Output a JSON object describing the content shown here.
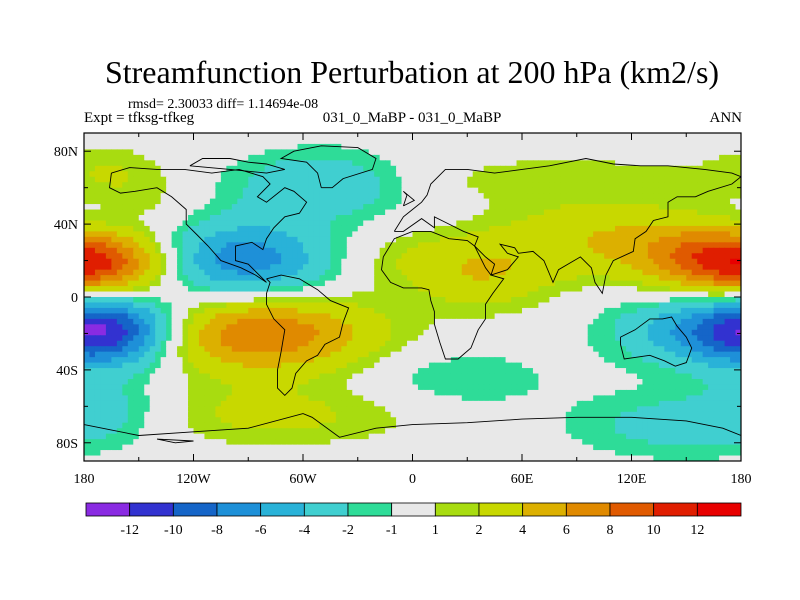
{
  "chart_data": {
    "type": "heatmap",
    "title": "Streamfunction Perturbation at 200 hPa (km2/s)",
    "stats_line": "rmsd= 2.30033 diff= 1.14694e-08",
    "left_label": "Expt = tfksg-tfkeg",
    "center_label": "031_0_MaBP - 031_0_MaBP",
    "right_label": "ANN",
    "x_axis": {
      "range": [
        -180,
        180
      ],
      "ticks": [
        -180,
        -120,
        -60,
        0,
        60,
        120,
        180
      ],
      "tick_labels": [
        "180",
        "120W",
        "60W",
        "0",
        "60E",
        "120E",
        "180"
      ]
    },
    "y_axis": {
      "range": [
        -90,
        90
      ],
      "ticks": [
        80,
        40,
        0,
        -40,
        -80
      ],
      "tick_labels": [
        "80N",
        "40N",
        "0",
        "40S",
        "80S"
      ]
    },
    "colorbar": {
      "labels": [
        "-12",
        "-10",
        "-8",
        "-6",
        "-4",
        "-2",
        "-1",
        "1",
        "2",
        "4",
        "6",
        "8",
        "10",
        "12"
      ],
      "colors": [
        "#8a2be2",
        "#3232d0",
        "#1565c8",
        "#1e90d8",
        "#29b2d8",
        "#40cfd0",
        "#2edc98",
        "#e8e8e8",
        "#a8dc10",
        "#c8d800",
        "#dcb000",
        "#e08a00",
        "#e05a00",
        "#e01e00",
        "#e80000"
      ]
    },
    "anomalies": [
      {
        "lon": -165,
        "lat": 18,
        "amp": 6,
        "rlon": 30,
        "rlat": 14
      },
      {
        "lon": 175,
        "lat": 18,
        "amp": 6,
        "rlon": 30,
        "rlat": 14
      },
      {
        "lon": -95,
        "lat": 20,
        "amp": -8,
        "rlon": 38,
        "rlat": 15
      },
      {
        "lon": -85,
        "lat": -20,
        "amp": 8,
        "rlon": 45,
        "rlat": 15
      },
      {
        "lon": -165,
        "lat": -18,
        "amp": -8,
        "rlon": 25,
        "rlat": 14
      },
      {
        "lon": 170,
        "lat": -18,
        "amp": -7,
        "rlon": 38,
        "rlat": 14
      },
      {
        "lon": -50,
        "lat": 62,
        "amp": -4,
        "rlon": 35,
        "rlat": 13
      },
      {
        "lon": 30,
        "lat": 20,
        "amp": 3,
        "rlon": 55,
        "rlat": 12
      },
      {
        "lon": 100,
        "lat": 38,
        "amp": 2.5,
        "rlon": 40,
        "rlat": 12
      },
      {
        "lon": 150,
        "lat": 25,
        "amp": 3,
        "rlon": 35,
        "rlat": 12
      },
      {
        "lon": -170,
        "lat": 40,
        "amp": -2,
        "rlon": 22,
        "rlat": 10
      },
      {
        "lon": 25,
        "lat": -45,
        "amp": -2,
        "rlon": 35,
        "rlat": 12
      },
      {
        "lon": 150,
        "lat": -70,
        "amp": -3,
        "rlon": 45,
        "rlat": 13
      },
      {
        "lon": -80,
        "lat": -65,
        "amp": 2.5,
        "rlon": 60,
        "rlat": 12
      },
      {
        "lon": 80,
        "lat": 65,
        "amp": 1.5,
        "rlon": 80,
        "rlat": 10
      },
      {
        "lon": -165,
        "lat": 70,
        "amp": 1.5,
        "rlon": 22,
        "rlat": 10
      },
      {
        "lon": -165,
        "lat": -60,
        "amp": -2,
        "rlon": 25,
        "rlat": 12
      },
      {
        "lon": -150,
        "lat": 50,
        "amp": 1.5,
        "rlon": 20,
        "rlat": 10
      },
      {
        "lon": 40,
        "lat": 5,
        "amp": 2,
        "rlon": 25,
        "rlat": 12
      }
    ],
    "coastlines": [
      [
        [
          -165,
          68
        ],
        [
          -155,
          71
        ],
        [
          -140,
          70
        ],
        [
          -125,
          70
        ],
        [
          -110,
          68
        ],
        [
          -95,
          70
        ],
        [
          -82,
          66
        ],
        [
          -78,
          62
        ],
        [
          -85,
          55
        ],
        [
          -80,
          52
        ],
        [
          -70,
          60
        ],
        [
          -65,
          58
        ],
        [
          -58,
          52
        ],
        [
          -62,
          46
        ],
        [
          -70,
          44
        ],
        [
          -76,
          38
        ],
        [
          -80,
          32
        ],
        [
          -82,
          26
        ],
        [
          -88,
          30
        ],
        [
          -97,
          28
        ],
        [
          -97,
          20
        ],
        [
          -90,
          18
        ],
        [
          -84,
          12
        ],
        [
          -80,
          8
        ],
        [
          -86,
          12
        ],
        [
          -94,
          16
        ],
        [
          -105,
          20
        ],
        [
          -112,
          28
        ],
        [
          -118,
          34
        ],
        [
          -124,
          40
        ],
        [
          -124,
          48
        ],
        [
          -132,
          55
        ],
        [
          -140,
          60
        ],
        [
          -152,
          58
        ],
        [
          -160,
          57
        ],
        [
          -166,
          60
        ],
        [
          -165,
          68
        ]
      ],
      [
        [
          -80,
          10
        ],
        [
          -72,
          12
        ],
        [
          -62,
          10
        ],
        [
          -52,
          4
        ],
        [
          -45,
          -2
        ],
        [
          -35,
          -6
        ],
        [
          -38,
          -14
        ],
        [
          -40,
          -22
        ],
        [
          -48,
          -26
        ],
        [
          -52,
          -32
        ],
        [
          -58,
          -35
        ],
        [
          -64,
          -42
        ],
        [
          -66,
          -50
        ],
        [
          -70,
          -54
        ],
        [
          -74,
          -50
        ],
        [
          -74,
          -40
        ],
        [
          -72,
          -30
        ],
        [
          -70,
          -18
        ],
        [
          -76,
          -12
        ],
        [
          -80,
          -4
        ],
        [
          -80,
          2
        ],
        [
          -78,
          8
        ],
        [
          -80,
          10
        ]
      ],
      [
        [
          -10,
          36
        ],
        [
          -5,
          44
        ],
        [
          0,
          48
        ],
        [
          5,
          52
        ],
        [
          8,
          56
        ],
        [
          10,
          62
        ],
        [
          18,
          70
        ],
        [
          30,
          70
        ],
        [
          45,
          68
        ],
        [
          60,
          70
        ],
        [
          75,
          72
        ],
        [
          95,
          76
        ],
        [
          110,
          73
        ],
        [
          125,
          72
        ],
        [
          140,
          72
        ],
        [
          160,
          70
        ],
        [
          175,
          68
        ],
        [
          180,
          66
        ],
        [
          175,
          62
        ],
        [
          162,
          58
        ],
        [
          155,
          55
        ],
        [
          145,
          55
        ],
        [
          140,
          52
        ],
        [
          140,
          44
        ],
        [
          132,
          42
        ],
        [
          128,
          36
        ],
        [
          122,
          32
        ],
        [
          121,
          25
        ],
        [
          110,
          20
        ],
        [
          106,
          12
        ],
        [
          104,
          2
        ],
        [
          100,
          8
        ],
        [
          98,
          16
        ],
        [
          92,
          22
        ],
        [
          80,
          15
        ],
        [
          77,
          8
        ],
        [
          72,
          20
        ],
        [
          66,
          25
        ],
        [
          58,
          24
        ],
        [
          56,
          27
        ],
        [
          48,
          29
        ],
        [
          52,
          24
        ],
        [
          58,
          22
        ],
        [
          52,
          15
        ],
        [
          43,
          12
        ],
        [
          45,
          18
        ],
        [
          40,
          22
        ],
        [
          34,
          28
        ],
        [
          36,
          33
        ],
        [
          28,
          36
        ],
        [
          20,
          40
        ],
        [
          12,
          44
        ],
        [
          12,
          38
        ],
        [
          5,
          43
        ],
        [
          -5,
          36
        ],
        [
          -10,
          36
        ]
      ],
      [
        [
          -16,
          22
        ],
        [
          -17,
          15
        ],
        [
          -12,
          8
        ],
        [
          -5,
          5
        ],
        [
          5,
          5
        ],
        [
          9,
          4
        ],
        [
          10,
          -2
        ],
        [
          12,
          -8
        ],
        [
          12,
          -15
        ],
        [
          15,
          -25
        ],
        [
          18,
          -34
        ],
        [
          25,
          -34
        ],
        [
          32,
          -28
        ],
        [
          36,
          -18
        ],
        [
          40,
          -12
        ],
        [
          40,
          -4
        ],
        [
          44,
          2
        ],
        [
          50,
          10
        ],
        [
          43,
          12
        ],
        [
          40,
          16
        ],
        [
          34,
          28
        ],
        [
          30,
          31
        ],
        [
          20,
          32
        ],
        [
          10,
          36
        ],
        [
          0,
          36
        ],
        [
          -10,
          32
        ],
        [
          -13,
          27
        ],
        [
          -16,
          22
        ]
      ],
      [
        [
          114,
          -22
        ],
        [
          122,
          -18
        ],
        [
          130,
          -12
        ],
        [
          137,
          -12
        ],
        [
          142,
          -11
        ],
        [
          145,
          -16
        ],
        [
          150,
          -22
        ],
        [
          153,
          -28
        ],
        [
          150,
          -36
        ],
        [
          144,
          -38
        ],
        [
          138,
          -35
        ],
        [
          130,
          -32
        ],
        [
          116,
          -34
        ],
        [
          114,
          -26
        ],
        [
          114,
          -22
        ]
      ],
      [
        [
          -50,
          60
        ],
        [
          -44,
          60
        ],
        [
          -38,
          65
        ],
        [
          -22,
          70
        ],
        [
          -20,
          76
        ],
        [
          -30,
          82
        ],
        [
          -50,
          83
        ],
        [
          -65,
          80
        ],
        [
          -72,
          76
        ],
        [
          -58,
          74
        ],
        [
          -52,
          68
        ],
        [
          -50,
          60
        ]
      ],
      [
        [
          -180,
          -70
        ],
        [
          -150,
          -76
        ],
        [
          -120,
          -74
        ],
        [
          -90,
          -72
        ],
        [
          -60,
          -64
        ],
        [
          -55,
          -66
        ],
        [
          -40,
          -77
        ],
        [
          -20,
          -72
        ],
        [
          0,
          -70
        ],
        [
          30,
          -69
        ],
        [
          60,
          -67
        ],
        [
          90,
          -66
        ],
        [
          120,
          -66
        ],
        [
          150,
          -68
        ],
        [
          170,
          -72
        ],
        [
          180,
          -76
        ]
      ],
      [
        [
          -5,
          50
        ],
        [
          -3,
          56
        ],
        [
          -5,
          58
        ],
        [
          1,
          53
        ],
        [
          -5,
          50
        ]
      ],
      [
        [
          -122,
          72
        ],
        [
          -115,
          76
        ],
        [
          -100,
          76
        ],
        [
          -90,
          74
        ],
        [
          -80,
          73
        ],
        [
          -70,
          70
        ],
        [
          -80,
          68
        ],
        [
          -100,
          70
        ],
        [
          -122,
          72
        ]
      ],
      [
        [
          -140,
          -78
        ],
        [
          -120,
          -79
        ],
        [
          -130,
          -80
        ],
        [
          -140,
          -78
        ]
      ]
    ]
  }
}
